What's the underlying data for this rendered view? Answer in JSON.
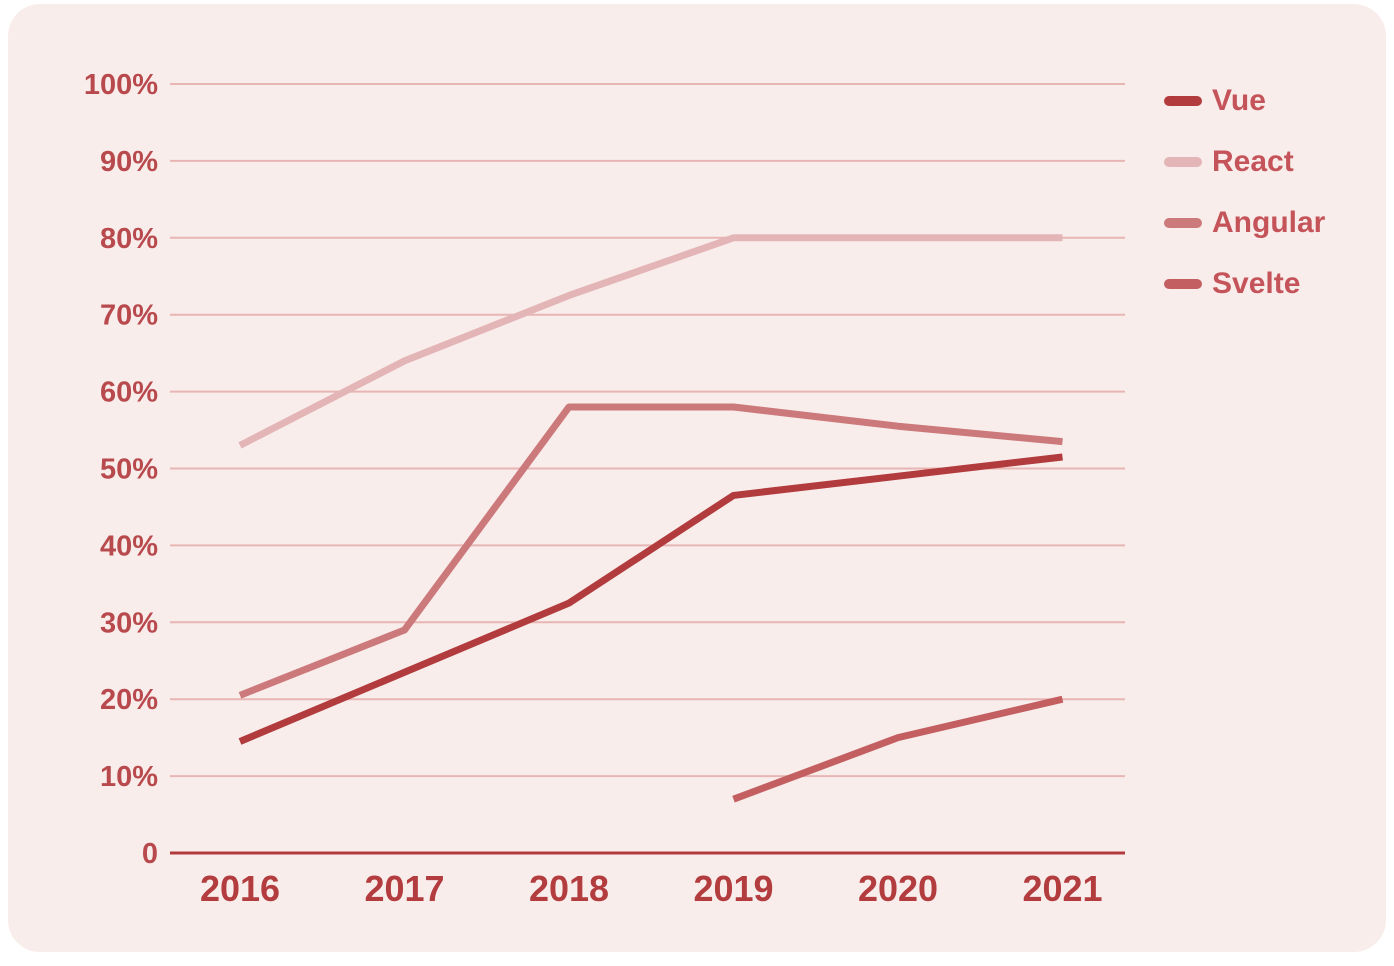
{
  "chart_data": {
    "type": "line",
    "title": "",
    "xlabel": "",
    "ylabel": "",
    "x": [
      "2016",
      "2017",
      "2018",
      "2019",
      "2020",
      "2021"
    ],
    "series": [
      {
        "name": "Vue",
        "color": "#b23b3d",
        "values": [
          14.5,
          23.5,
          32.5,
          46.5,
          49,
          51.5
        ]
      },
      {
        "name": "React",
        "color": "#e3b5b6",
        "values": [
          53,
          64,
          72.5,
          80,
          80,
          80
        ]
      },
      {
        "name": "Angular",
        "color": "#cc797b",
        "values": [
          20.5,
          29,
          58,
          58,
          55.5,
          53.5
        ]
      },
      {
        "name": "Svelte",
        "color": "#c35f61",
        "values": [
          null,
          null,
          null,
          7,
          15,
          20
        ]
      }
    ],
    "ylim": [
      0,
      100
    ],
    "ytick_labels": [
      "100%",
      "90%",
      "80%",
      "70%",
      "60%",
      "50%",
      "40%",
      "30%",
      "20%",
      "10%",
      "0"
    ],
    "ytick_values": [
      100,
      90,
      80,
      70,
      60,
      50,
      40,
      30,
      20,
      10,
      0
    ],
    "grid": "horizontal",
    "legend_position": "top-right",
    "colors": {
      "panel_background": "#f9edeb",
      "gridline": "#e7b5b3",
      "axis_line": "#b23a3d",
      "ytick_label": "#b84a4e",
      "xtick_label": "#b23c3e",
      "legend_text": "#c4545a"
    }
  }
}
